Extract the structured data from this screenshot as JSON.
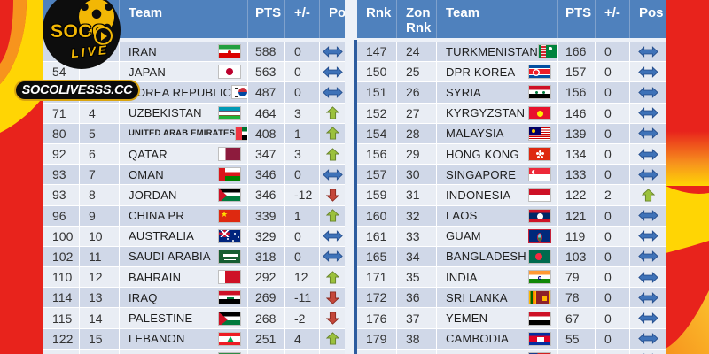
{
  "logo": {
    "brand_top": "SOCO",
    "brand_bottom": "LIVE",
    "banner_text": "SOCOLIVESSS.CC"
  },
  "icons": {
    "pos_same": {
      "fill": "#3E72B8",
      "stroke": "#27508F"
    },
    "pos_up": {
      "fill": "#9BC13C",
      "stroke": "#68832B"
    },
    "pos_down": {
      "fill": "#C4473A",
      "stroke": "#8E2B20"
    }
  },
  "colors": {
    "header_bg": "#4F81BD",
    "row_dark": "#D0D8E8",
    "row_light": "#E9EDF4",
    "background_red": "#E8231C",
    "background_yellow": "#FFD504",
    "background_orange": "#F7941D"
  },
  "chart_data": [
    {
      "type": "table",
      "position": "left",
      "headers": {
        "rank": "Rnk",
        "zon_rank": "Zon Rnk",
        "team": "Team",
        "pts": "PTS",
        "delta": "+/-",
        "pos": "Pos"
      },
      "rows": [
        {
          "rank": "",
          "zon_rank": "",
          "team": "IRAN",
          "flag": "iran",
          "pts": "588",
          "delta": "0",
          "pos": "same"
        },
        {
          "rank": "54",
          "zon_rank": "",
          "team": "JAPAN",
          "flag": "japan",
          "pts": "563",
          "delta": "0",
          "pos": "same"
        },
        {
          "rank": "",
          "zon_rank": "",
          "team": "KOREA REPUBLIC",
          "flag": "korea",
          "pts": "487",
          "delta": "0",
          "pos": "same"
        },
        {
          "rank": "71",
          "zon_rank": "4",
          "team": "UZBEKISTAN",
          "flag": "uzbekistan",
          "pts": "464",
          "delta": "3",
          "pos": "up"
        },
        {
          "rank": "80",
          "zon_rank": "5",
          "team": "UNITED ARAB EMIRATES",
          "flag": "uae",
          "pts": "408",
          "delta": "1",
          "pos": "up",
          "small_text": true
        },
        {
          "rank": "92",
          "zon_rank": "6",
          "team": "QATAR",
          "flag": "qatar",
          "pts": "347",
          "delta": "3",
          "pos": "up"
        },
        {
          "rank": "93",
          "zon_rank": "7",
          "team": "OMAN",
          "flag": "oman",
          "pts": "346",
          "delta": "0",
          "pos": "same"
        },
        {
          "rank": "93",
          "zon_rank": "8",
          "team": "JORDAN",
          "flag": "jordan",
          "pts": "346",
          "delta": "-12",
          "pos": "down"
        },
        {
          "rank": "96",
          "zon_rank": "9",
          "team": "CHINA PR",
          "flag": "china",
          "pts": "339",
          "delta": "1",
          "pos": "up"
        },
        {
          "rank": "100",
          "zon_rank": "10",
          "team": "AUSTRALIA",
          "flag": "australia",
          "pts": "329",
          "delta": "0",
          "pos": "same"
        },
        {
          "rank": "102",
          "zon_rank": "11",
          "team": "SAUDI ARABIA",
          "flag": "saudi-arabia",
          "pts": "318",
          "delta": "0",
          "pos": "same"
        },
        {
          "rank": "110",
          "zon_rank": "12",
          "team": "BAHRAIN",
          "flag": "bahrain",
          "pts": "292",
          "delta": "12",
          "pos": "up"
        },
        {
          "rank": "114",
          "zon_rank": "13",
          "team": "IRAQ",
          "flag": "iraq",
          "pts": "269",
          "delta": "-11",
          "pos": "down"
        },
        {
          "rank": "115",
          "zon_rank": "14",
          "team": "PALESTINE",
          "flag": "palestine",
          "pts": "268",
          "delta": "-2",
          "pos": "down"
        },
        {
          "rank": "122",
          "zon_rank": "15",
          "team": "LEBANON",
          "flag": "lebanon",
          "pts": "251",
          "delta": "4",
          "pos": "up"
        },
        {
          "rank": "",
          "zon_rank": "",
          "team": "",
          "flag": "next-partial-left",
          "pts": "",
          "delta": "",
          "pos": ""
        }
      ]
    },
    {
      "type": "table",
      "position": "right",
      "headers": {
        "rank": "Rnk",
        "zon_rank": "Zon Rnk",
        "team": "Team",
        "pts": "PTS",
        "delta": "+/-",
        "pos": "Pos"
      },
      "rows": [
        {
          "rank": "147",
          "zon_rank": "24",
          "team": "TURKMENISTAN",
          "flag": "turkmenistan",
          "pts": "166",
          "delta": "0",
          "pos": "same"
        },
        {
          "rank": "150",
          "zon_rank": "25",
          "team": "DPR KOREA",
          "flag": "dpr-korea",
          "pts": "157",
          "delta": "0",
          "pos": "same"
        },
        {
          "rank": "151",
          "zon_rank": "26",
          "team": "SYRIA",
          "flag": "syria",
          "pts": "156",
          "delta": "0",
          "pos": "same"
        },
        {
          "rank": "152",
          "zon_rank": "27",
          "team": "KYRGYZSTAN",
          "flag": "kyrgyzstan",
          "pts": "146",
          "delta": "0",
          "pos": "same"
        },
        {
          "rank": "154",
          "zon_rank": "28",
          "team": "MALAYSIA",
          "flag": "malaysia",
          "pts": "139",
          "delta": "0",
          "pos": "same"
        },
        {
          "rank": "156",
          "zon_rank": "29",
          "team": "HONG KONG",
          "flag": "hong-kong",
          "pts": "134",
          "delta": "0",
          "pos": "same"
        },
        {
          "rank": "157",
          "zon_rank": "30",
          "team": "SINGAPORE",
          "flag": "singapore",
          "pts": "133",
          "delta": "0",
          "pos": "same"
        },
        {
          "rank": "159",
          "zon_rank": "31",
          "team": "INDONESIA",
          "flag": "indonesia",
          "pts": "122",
          "delta": "2",
          "pos": "up"
        },
        {
          "rank": "160",
          "zon_rank": "32",
          "team": "LAOS",
          "flag": "laos",
          "pts": "121",
          "delta": "0",
          "pos": "same"
        },
        {
          "rank": "161",
          "zon_rank": "33",
          "team": "GUAM",
          "flag": "guam",
          "pts": "119",
          "delta": "0",
          "pos": "same"
        },
        {
          "rank": "165",
          "zon_rank": "34",
          "team": "BANGLADESH",
          "flag": "bangladesh",
          "pts": "103",
          "delta": "0",
          "pos": "same"
        },
        {
          "rank": "171",
          "zon_rank": "35",
          "team": "INDIA",
          "flag": "india",
          "pts": "79",
          "delta": "0",
          "pos": "same"
        },
        {
          "rank": "172",
          "zon_rank": "36",
          "team": "SRI LANKA",
          "flag": "sri-lanka",
          "pts": "78",
          "delta": "0",
          "pos": "same"
        },
        {
          "rank": "176",
          "zon_rank": "37",
          "team": "YEMEN",
          "flag": "yemen",
          "pts": "67",
          "delta": "0",
          "pos": "same"
        },
        {
          "rank": "179",
          "zon_rank": "38",
          "team": "CAMBODIA",
          "flag": "cambodia",
          "pts": "55",
          "delta": "0",
          "pos": "same"
        },
        {
          "rank": "",
          "zon_rank": "",
          "team": "",
          "flag": "next-partial-right",
          "pts": "",
          "delta": "",
          "pos": "same"
        }
      ]
    }
  ]
}
